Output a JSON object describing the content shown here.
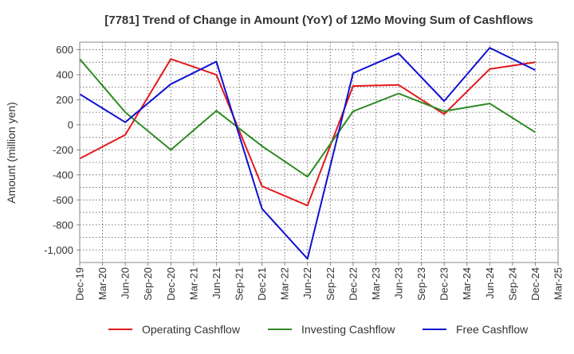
{
  "chart_data": {
    "type": "line",
    "title": "[7781]  Trend of Change in Amount (YoY) of 12Mo Moving Sum of Cashflows",
    "xlabel": "",
    "ylabel": "Amount (million yen)",
    "ylim": [
      -1100,
      660
    ],
    "yticks": [
      600,
      400,
      200,
      0,
      -200,
      -400,
      -600,
      -800,
      -1000
    ],
    "ytick_labels": [
      "600",
      "400",
      "200",
      "0",
      "-200",
      "-400",
      "-600",
      "-800",
      "-1,000"
    ],
    "categories": [
      "Dec-19",
      "Mar-20",
      "Jun-20",
      "Sep-20",
      "Dec-20",
      "Mar-21",
      "Jun-21",
      "Sep-21",
      "Dec-21",
      "Mar-22",
      "Jun-22",
      "Sep-22",
      "Dec-22",
      "Mar-23",
      "Jun-23",
      "Sep-23",
      "Dec-23",
      "Mar-24",
      "Jun-24",
      "Sep-24",
      "Dec-24",
      "Mar-25"
    ],
    "grid": true,
    "legend_position": "bottom",
    "series": [
      {
        "name": "Operating Cashflow",
        "color": "#e31a1c",
        "x": [
          0,
          2,
          4,
          6,
          8,
          10,
          12,
          14,
          16,
          18,
          20
        ],
        "values": [
          -270,
          -80,
          525,
          400,
          -490,
          -645,
          310,
          318,
          85,
          445,
          500
        ]
      },
      {
        "name": "Investing Cashflow",
        "color": "#2e8b22",
        "x": [
          0,
          2,
          4,
          6,
          8,
          10,
          12,
          14,
          16,
          18,
          20
        ],
        "values": [
          525,
          100,
          -200,
          112,
          -170,
          -415,
          107,
          250,
          108,
          170,
          -60
        ]
      },
      {
        "name": "Free Cashflow",
        "color": "#1010d0",
        "x": [
          0,
          2,
          4,
          6,
          8,
          10,
          12,
          14,
          16,
          18,
          20
        ],
        "values": [
          245,
          20,
          325,
          505,
          -670,
          -1070,
          412,
          570,
          190,
          615,
          437
        ]
      }
    ]
  }
}
